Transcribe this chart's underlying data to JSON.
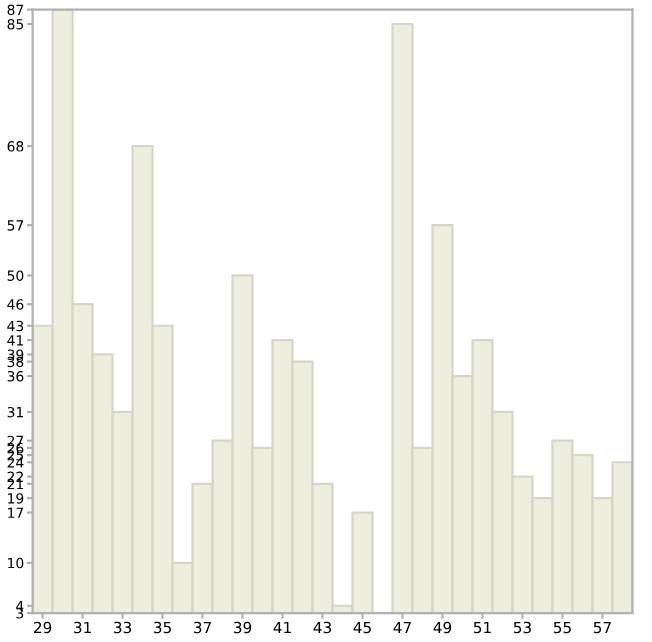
{
  "chart_data": {
    "type": "bar",
    "categories": [
      "29",
      null,
      "31",
      null,
      "33",
      null,
      "35",
      null,
      "37",
      null,
      "39",
      null,
      "41",
      null,
      "43",
      null,
      "45",
      null,
      "47",
      null,
      "49",
      null,
      "51",
      null,
      "53",
      null,
      "55",
      null,
      "57",
      null
    ],
    "values": [
      43,
      87,
      46,
      39,
      31,
      68,
      43,
      10,
      21,
      27,
      50,
      26,
      41,
      38,
      21,
      4,
      17,
      null,
      85,
      26,
      57,
      36,
      41,
      31,
      22,
      19,
      27,
      25,
      19,
      24
    ],
    "color": "#eeeedf",
    "ylim": [
      3,
      87
    ],
    "yticks": [
      87,
      85,
      68,
      57,
      50,
      46,
      43,
      41,
      39,
      38,
      36,
      31,
      27,
      26,
      25,
      24,
      22,
      21,
      19,
      17,
      10,
      4,
      3
    ],
    "grid": false,
    "legend": false
  }
}
